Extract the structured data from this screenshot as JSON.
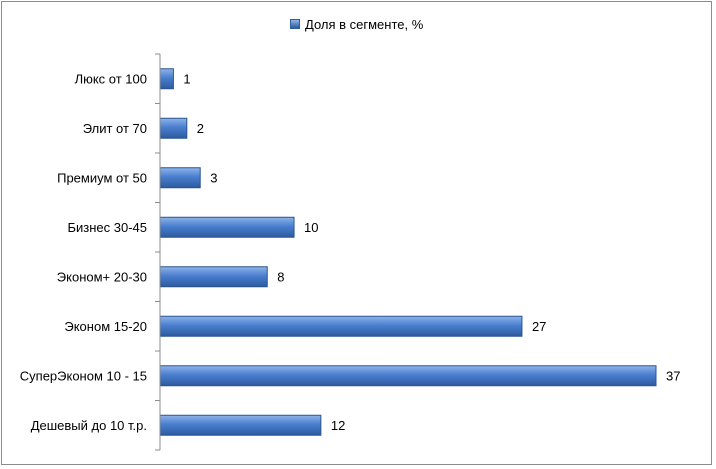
{
  "chart_data": {
    "type": "bar",
    "orientation": "horizontal",
    "categories": [
      "Люкс от 100",
      "Элит от 70",
      "Премиум от 50",
      "Бизнес 30-45",
      "Эконом+ 20-30",
      "Эконом 15-20",
      "СуперЭконом 10 - 15",
      "Дешевый до 10 т.р."
    ],
    "series": [
      {
        "name": "Доля в сегменте, %",
        "values": [
          1,
          2,
          3,
          10,
          8,
          27,
          37,
          12
        ]
      }
    ],
    "xlim": [
      0,
      37
    ],
    "grid": false,
    "legend_position": "top",
    "data_labels": true
  },
  "colors": {
    "bar_light": "#8fb4e8",
    "bar_mid": "#4a7fd0",
    "bar_dark": "#2c5a9e",
    "bar_border": "#2b558f",
    "axis": "#8c8c8c",
    "frame": "#8c8c8c"
  }
}
